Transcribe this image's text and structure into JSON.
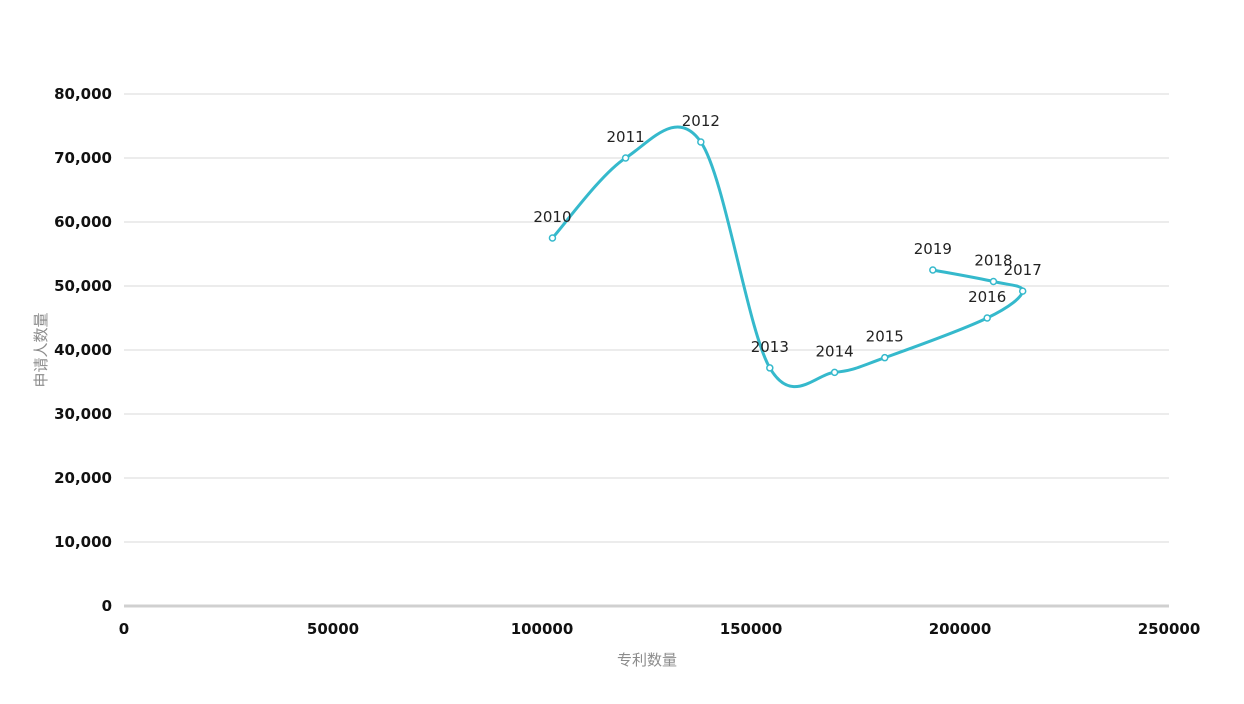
{
  "chart_data": {
    "type": "line",
    "xlabel": "专利数量",
    "ylabel": "申请人数量",
    "xlim": [
      0,
      250000
    ],
    "ylim": [
      0,
      80000
    ],
    "x_ticks": [
      0,
      50000,
      100000,
      150000,
      200000,
      250000
    ],
    "x_tick_labels": [
      "0",
      "50000",
      "100000",
      "150000",
      "200000",
      "250000"
    ],
    "y_ticks": [
      0,
      10000,
      20000,
      30000,
      40000,
      50000,
      60000,
      70000,
      80000
    ],
    "y_tick_labels": [
      "0",
      "10,000",
      "20,000",
      "30,000",
      "40,000",
      "50,000",
      "60,000",
      "70,000",
      "80,000"
    ],
    "grid": true,
    "line_color": "#35b9cc",
    "grid_color": "#d9d9d9",
    "series": [
      {
        "points": [
          {
            "label": "2010",
            "x": 102500,
            "y": 57500
          },
          {
            "label": "2011",
            "x": 120000,
            "y": 70000
          },
          {
            "label": "2012",
            "x": 138000,
            "y": 72500
          },
          {
            "label": "2013",
            "x": 154500,
            "y": 37200
          },
          {
            "label": "2014",
            "x": 170000,
            "y": 36500
          },
          {
            "label": "2015",
            "x": 182000,
            "y": 38800
          },
          {
            "label": "2016",
            "x": 206500,
            "y": 45000
          },
          {
            "label": "2017",
            "x": 215000,
            "y": 49200
          },
          {
            "label": "2018",
            "x": 208000,
            "y": 50700
          },
          {
            "label": "2019",
            "x": 193500,
            "y": 52500
          }
        ]
      }
    ]
  }
}
